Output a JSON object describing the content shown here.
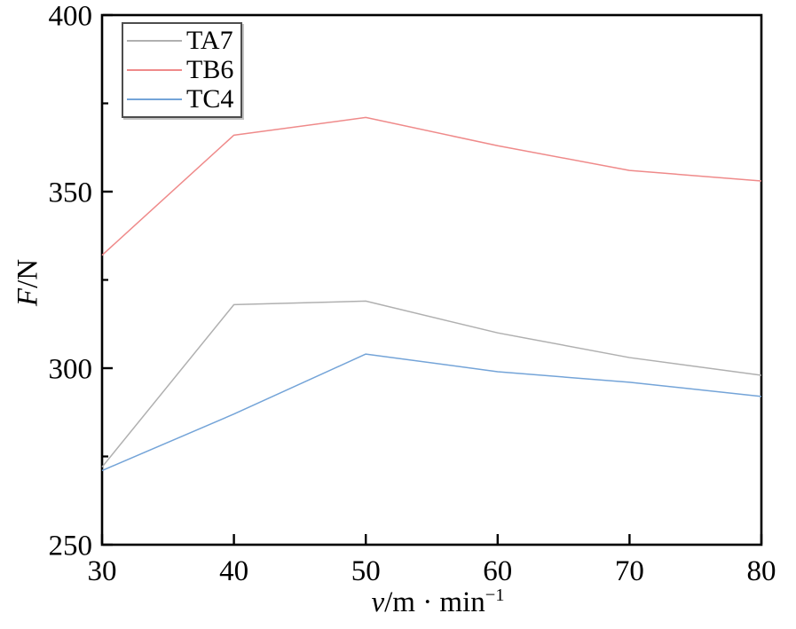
{
  "chart_data": {
    "type": "line",
    "x": [
      30,
      40,
      50,
      60,
      70,
      80
    ],
    "series": [
      {
        "name": "TA7",
        "color": "#b0b0b0",
        "values": [
          272,
          318,
          319,
          310,
          303,
          298
        ]
      },
      {
        "name": "TB6",
        "color": "#ef8a8a",
        "values": [
          332,
          366,
          371,
          363,
          356,
          353
        ]
      },
      {
        "name": "TC4",
        "color": "#74a4d8",
        "values": [
          271,
          287,
          304,
          299,
          296,
          292
        ]
      }
    ],
    "xlabel": {
      "var": "v",
      "rest": "/m · min",
      "sup": "−1"
    },
    "ylabel": {
      "var": "F",
      "rest": "/N"
    },
    "xlim": [
      30,
      80
    ],
    "ylim": [
      250,
      400
    ],
    "x_ticks": [
      30,
      40,
      50,
      60,
      70,
      80
    ],
    "y_ticks": [
      250,
      300,
      350,
      400
    ],
    "y_minor_ticks": [
      275,
      325,
      375
    ],
    "legend_position": "top-left",
    "grid": false,
    "axis_color": "#000000",
    "background": "#ffffff",
    "tick_label_font_size": 33
  }
}
